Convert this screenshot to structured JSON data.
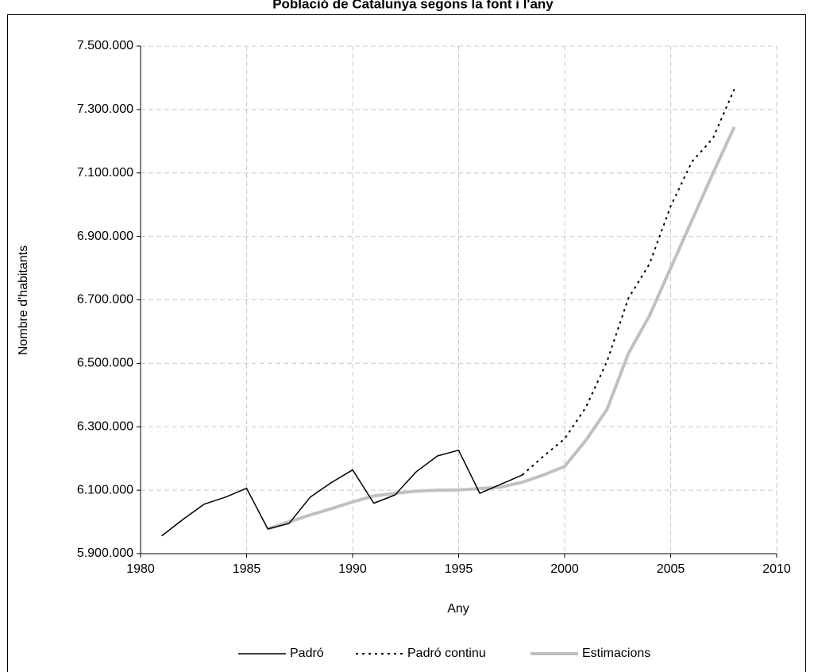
{
  "chart_data": {
    "type": "line",
    "title": "Població de Catalunya segons la font i l'any",
    "xlabel": "Any",
    "ylabel": "Nombre d'habitants",
    "series": [
      {
        "name": "Padró",
        "color": "#000000",
        "dash": "solid",
        "x": [
          1981,
          1982,
          1983,
          1984,
          1985,
          1986,
          1987,
          1988,
          1989,
          1990,
          1991,
          1992,
          1993,
          1994,
          1995,
          1996,
          1998
        ],
        "values": [
          5956000,
          6008000,
          6056000,
          6078000,
          6106000,
          5978000,
          5995000,
          6078000,
          6124000,
          6164000,
          6059000,
          6085000,
          6158000,
          6208000,
          6226000,
          6090000,
          6148000
        ]
      },
      {
        "name": "Padró continu",
        "color": "#000000",
        "dash": "dotted",
        "x": [
          1998,
          1999,
          2000,
          2001,
          2002,
          2003,
          2004,
          2005,
          2006,
          2007,
          2008
        ],
        "values": [
          6148000,
          6207000,
          6262000,
          6361000,
          6506000,
          6704000,
          6813000,
          6995000,
          7135000,
          7210000,
          7364000
        ]
      },
      {
        "name": "Estimacions",
        "color": "#c0c0c0",
        "dash": "solid",
        "x": [
          1986,
          1987,
          1988,
          1989,
          1990,
          1991,
          1992,
          1993,
          1994,
          1995,
          1996,
          1997,
          1998,
          1999,
          2000,
          2001,
          2002,
          2003,
          2004,
          2005,
          2006,
          2007,
          2008
        ],
        "values": [
          5978000,
          6000000,
          6022000,
          6042000,
          6063000,
          6082000,
          6090000,
          6097000,
          6100000,
          6101000,
          6105000,
          6110000,
          6125000,
          6148000,
          6175000,
          6257000,
          6355000,
          6530000,
          6650000,
          6800000,
          6950000,
          7100000,
          7245000
        ]
      }
    ],
    "xlim": [
      1980,
      2010
    ],
    "xticks": [
      1980,
      1985,
      1990,
      1995,
      2000,
      2005,
      2010
    ],
    "ylim": [
      5900000,
      7500000
    ],
    "yticks": [
      {
        "value": 5900000,
        "label": "5.900.000"
      },
      {
        "value": 6100000,
        "label": "6.100.000"
      },
      {
        "value": 6300000,
        "label": "6.300.000"
      },
      {
        "value": 6500000,
        "label": "6.500.000"
      },
      {
        "value": 6700000,
        "label": "6.700.000"
      },
      {
        "value": 6900000,
        "label": "6.900.000"
      },
      {
        "value": 7100000,
        "label": "7.100.000"
      },
      {
        "value": 7300000,
        "label": "7.300.000"
      },
      {
        "value": 7500000,
        "label": "7.500.000"
      }
    ],
    "grid": true,
    "legend": "bottom"
  }
}
